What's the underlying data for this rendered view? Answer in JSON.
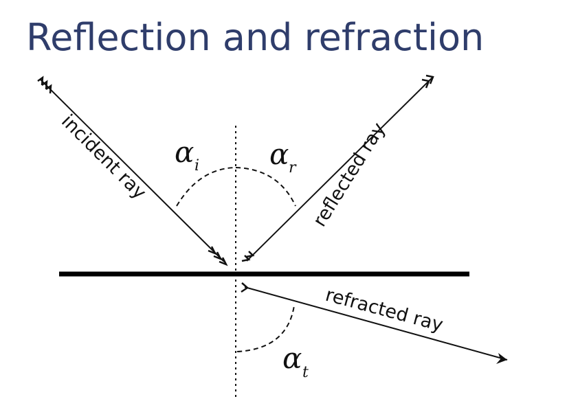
{
  "title": "Reflection and refraction",
  "labels": {
    "incident": "incident ray",
    "reflected": "reflected ray",
    "refracted": "refracted ray"
  },
  "angles": {
    "incident": {
      "symbol": "α",
      "sub": "i"
    },
    "reflected": {
      "symbol": "α",
      "sub": "r"
    },
    "refracted": {
      "symbol": "α",
      "sub": "t"
    }
  }
}
